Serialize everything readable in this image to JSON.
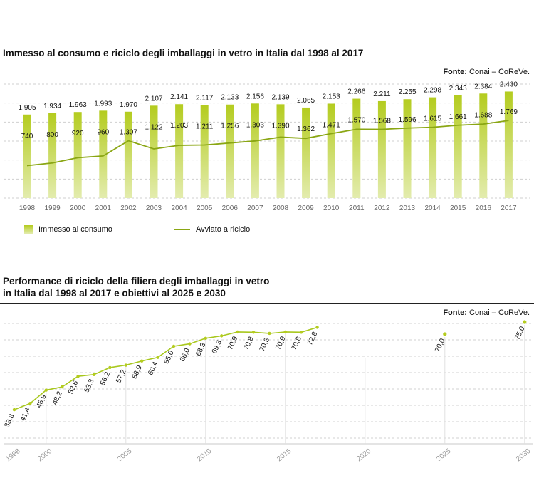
{
  "chart1": {
    "title": "Immesso al consumo e riciclo degli imballaggi in vetro in Italia dal 1998 al 2017",
    "source_label": "Fonte:",
    "source_value": "Conai – CoReVe."
  },
  "chart2": {
    "title_line1": "Performance di riciclo della filiera degli imballaggi in vetro",
    "title_line2": "in Italia dal 1998 al 2017 e obiettivi al 2025 e 2030",
    "source_label": "Fonte:",
    "source_value": "Conai – CoReVe."
  },
  "chart_data": [
    {
      "type": "bar",
      "title": "Immesso al consumo e riciclo degli imballaggi in vetro in Italia dal 1998 al 2017",
      "categories": [
        "1998",
        "1999",
        "2000",
        "2001",
        "2002",
        "2003",
        "2004",
        "2005",
        "2006",
        "2007",
        "2008",
        "2009",
        "2010",
        "2011",
        "2012",
        "2013",
        "2014",
        "2015",
        "2016",
        "2017"
      ],
      "series": [
        {
          "name": "Immesso al consumo",
          "type": "bar",
          "values": [
            1905,
            1934,
            1963,
            1993,
            1970,
            2107,
            2141,
            2117,
            2133,
            2156,
            2139,
            2065,
            2153,
            2266,
            2211,
            2255,
            2298,
            2343,
            2384,
            2430
          ],
          "labels": [
            "1.905",
            "1.934",
            "1.963",
            "1.993",
            "1.970",
            "2.107",
            "2.141",
            "2.117",
            "2.133",
            "2.156",
            "2.139",
            "2.065",
            "2.153",
            "2.266",
            "2.211",
            "2.255",
            "2.298",
            "2.343",
            "2.384",
            "2.430"
          ]
        },
        {
          "name": "Avviato a riciclo",
          "type": "line",
          "values": [
            740,
            800,
            920,
            960,
            1307,
            1122,
            1203,
            1211,
            1256,
            1303,
            1390,
            1362,
            1471,
            1570,
            1568,
            1596,
            1615,
            1661,
            1688,
            1769
          ],
          "labels": [
            "740",
            "800",
            "920",
            "960",
            "1.307",
            "1.122",
            "1.203",
            "1.211",
            "1.256",
            "1.303",
            "1.390",
            "1.362",
            "1.471",
            "1.570",
            "1.568",
            "1.596",
            "1.615",
            "1.661",
            "1.688",
            "1.769"
          ]
        }
      ],
      "ylim": [
        0,
        2600
      ],
      "grid": true,
      "legend": "bottom-left",
      "colors": {
        "bar_top": "#b4cc1f",
        "bar_bottom": "#e3ecae",
        "line": "#8aa613"
      }
    },
    {
      "type": "line",
      "title": "Performance di riciclo della filiera degli imballaggi in vetro in Italia dal 1998 al 2017 e obiettivi al 2025 e 2030",
      "x": [
        1998,
        1999,
        2000,
        2001,
        2002,
        2003,
        2004,
        2005,
        2006,
        2007,
        2008,
        2009,
        2010,
        2011,
        2012,
        2013,
        2014,
        2015,
        2016,
        2017
      ],
      "values": [
        38.8,
        41.4,
        46.9,
        48.2,
        52.6,
        53.3,
        56.2,
        57.2,
        58.9,
        60.4,
        65.0,
        66.0,
        68.3,
        69.3,
        70.9,
        70.8,
        70.3,
        70.9,
        70.8,
        72.8
      ],
      "labels": [
        "38,8",
        "41,4",
        "46,9",
        "48,2",
        "52,6",
        "53,3",
        "56,2",
        "57,2",
        "58,9",
        "60,4",
        "65,0",
        "66,0",
        "68,3",
        "69,3",
        "70,9",
        "70,8",
        "70,3",
        "70,9",
        "70,8",
        "72,8"
      ],
      "targets": [
        {
          "x": 2025,
          "value": 70.0,
          "label": "70,0"
        },
        {
          "x": 2030,
          "value": 75.0,
          "label": "75,0"
        }
      ],
      "xticks": [
        "1998",
        "2000",
        "2005",
        "2010",
        "2015",
        "2020",
        "2025",
        "2030"
      ],
      "xlim": [
        1998,
        2030
      ],
      "grid": true,
      "colors": {
        "line": "#a8c81e",
        "point": "#b4cc1f"
      }
    }
  ]
}
